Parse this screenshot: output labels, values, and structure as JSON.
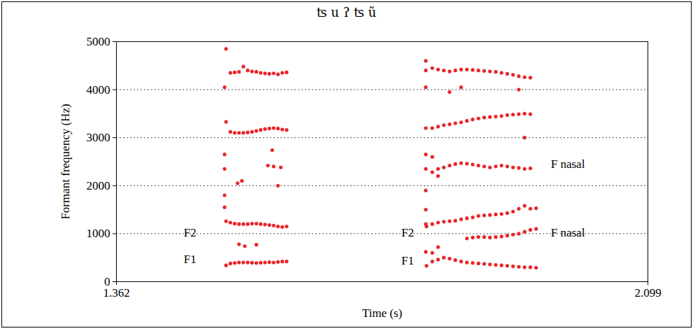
{
  "chart_data": {
    "type": "scatter",
    "title": "ʦ u ʔ ʦ ũ",
    "x_label": "Time (s)",
    "y_label": "Formant frequency (Hz)",
    "xlim": [
      1.362,
      2.099
    ],
    "ylim": [
      0,
      5000
    ],
    "xticks": [
      1.362,
      2.099
    ],
    "yticks": [
      0,
      1000,
      2000,
      3000,
      4000,
      5000
    ],
    "grid": true,
    "color": "#e8262a",
    "marker": "circle",
    "x": [
      1.514,
      1.52,
      1.526,
      1.532,
      1.538,
      1.544,
      1.55,
      1.556,
      1.562,
      1.568,
      1.574,
      1.58,
      1.586,
      1.592,
      1.598,
      1.514,
      1.52,
      1.526,
      1.532,
      1.538,
      1.544,
      1.55,
      1.556,
      1.562,
      1.568,
      1.574,
      1.58,
      1.586,
      1.592,
      1.598,
      1.532,
      1.54,
      1.556,
      1.514,
      1.52,
      1.526,
      1.532,
      1.538,
      1.544,
      1.55,
      1.556,
      1.562,
      1.568,
      1.574,
      1.58,
      1.586,
      1.592,
      1.598,
      1.514,
      1.52,
      1.526,
      1.532,
      1.538,
      1.544,
      1.55,
      1.556,
      1.562,
      1.568,
      1.574,
      1.58,
      1.586,
      1.592,
      1.598,
      1.512,
      1.512,
      1.512,
      1.512,
      1.512,
      1.53,
      1.536,
      1.572,
      1.58,
      1.578,
      1.586,
      1.59,
      1.791,
      1.791,
      1.791,
      1.791,
      1.791,
      1.791,
      1.791,
      1.791,
      1.791,
      1.791,
      1.792,
      1.8,
      1.808,
      1.816,
      1.824,
      1.832,
      1.84,
      1.848,
      1.856,
      1.864,
      1.872,
      1.88,
      1.888,
      1.896,
      1.904,
      1.912,
      1.92,
      1.928,
      1.936,
      1.944,
      1.792,
      1.8,
      1.808,
      1.816,
      1.824,
      1.832,
      1.84,
      1.848,
      1.856,
      1.864,
      1.872,
      1.88,
      1.888,
      1.896,
      1.904,
      1.912,
      1.92,
      1.928,
      1.936,
      1.944,
      1.848,
      1.856,
      1.864,
      1.872,
      1.88,
      1.888,
      1.896,
      1.904,
      1.912,
      1.92,
      1.928,
      1.936,
      1.944,
      1.8,
      1.808,
      1.808,
      1.8,
      1.8,
      1.808,
      1.816,
      1.824,
      1.832,
      1.84,
      1.848,
      1.856,
      1.864,
      1.872,
      1.88,
      1.888,
      1.896,
      1.904,
      1.912,
      1.92,
      1.928,
      1.936,
      1.8,
      1.808,
      1.816,
      1.824,
      1.832,
      1.84,
      1.848,
      1.856,
      1.864,
      1.872,
      1.88,
      1.888,
      1.896,
      1.904,
      1.912,
      1.92,
      1.928,
      1.936,
      1.8,
      1.808,
      1.816,
      1.824,
      1.832,
      1.84,
      1.848,
      1.856,
      1.864,
      1.872,
      1.88,
      1.888,
      1.896,
      1.904,
      1.912,
      1.92,
      1.928,
      1.936,
      1.824,
      1.84,
      1.92,
      1.928
    ],
    "values": [
      340,
      380,
      390,
      400,
      400,
      400,
      395,
      390,
      395,
      400,
      405,
      400,
      410,
      420,
      420,
      1260,
      1230,
      1210,
      1200,
      1200,
      1200,
      1210,
      1210,
      1200,
      1190,
      1180,
      1170,
      1150,
      1140,
      1150,
      780,
      740,
      770,
      3330,
      3120,
      3100,
      3100,
      3100,
      3110,
      3120,
      3140,
      3160,
      3180,
      3190,
      3200,
      3190,
      3170,
      3160,
      4850,
      4350,
      4360,
      4370,
      4480,
      4400,
      4380,
      4370,
      4350,
      4340,
      4330,
      4340,
      4320,
      4350,
      4360,
      4050,
      2650,
      2350,
      1800,
      1550,
      2050,
      2100,
      2420,
      2400,
      2740,
      2000,
      2380,
      4600,
      4400,
      4050,
      3200,
      2650,
      2350,
      1900,
      1500,
      1200,
      620,
      330,
      420,
      460,
      500,
      480,
      450,
      420,
      400,
      390,
      380,
      370,
      360,
      350,
      340,
      330,
      320,
      310,
      300,
      300,
      290,
      1150,
      1200,
      1230,
      1250,
      1260,
      1270,
      1300,
      1320,
      1340,
      1370,
      1380,
      1390,
      1400,
      1410,
      1430,
      1460,
      1520,
      1580,
      1520,
      1530,
      900,
      920,
      930,
      930,
      920,
      930,
      940,
      960,
      980,
      1000,
      1040,
      1080,
      1100,
      600,
      720,
      2200,
      2600,
      2280,
      2350,
      2380,
      2420,
      2450,
      2470,
      2460,
      2440,
      2420,
      2400,
      2380,
      2400,
      2420,
      2400,
      2380,
      2370,
      2350,
      2360,
      3200,
      3230,
      3260,
      3280,
      3300,
      3320,
      3350,
      3380,
      3400,
      3420,
      3430,
      3440,
      3450,
      3470,
      3480,
      3490,
      3500,
      3490,
      4450,
      4420,
      4400,
      4380,
      4400,
      4420,
      4420,
      4410,
      4400,
      4390,
      4380,
      4370,
      4350,
      4330,
      4310,
      4280,
      4260,
      4250,
      3950,
      4050,
      4000,
      3000
    ],
    "annotations": [
      {
        "text": "F2",
        "x": 1.464,
        "y": 1020
      },
      {
        "text": "F1",
        "x": 1.464,
        "y": 466
      },
      {
        "text": "F2",
        "x": 1.766,
        "y": 1020
      },
      {
        "text": "F1",
        "x": 1.766,
        "y": 440
      },
      {
        "text": "F nasal",
        "x": 1.988,
        "y": 2450
      },
      {
        "text": "F nasal",
        "x": 1.988,
        "y": 1020
      }
    ]
  }
}
